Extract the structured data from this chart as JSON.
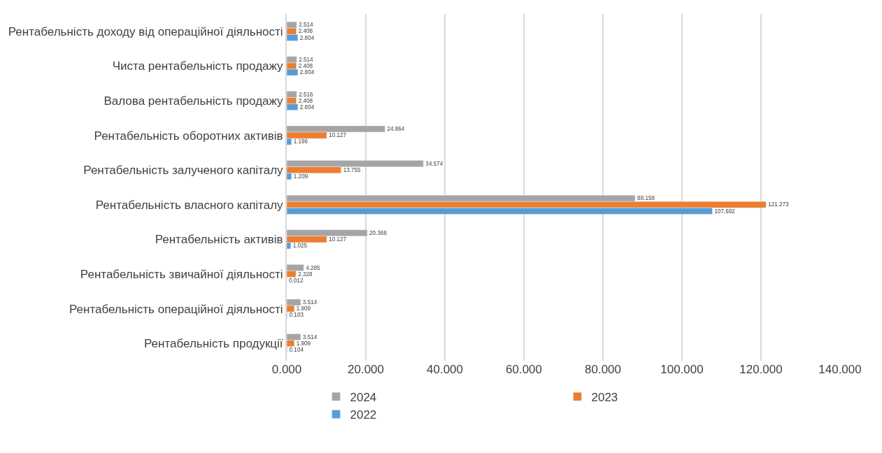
{
  "chart_data": {
    "type": "bar",
    "orientation": "horizontal",
    "categories": [
      "Рентабельність доходу від операційної діяльності",
      "Чиста рентабельність продажу",
      "Валова рентабельність продажу",
      "Рентабельність оборотних активів",
      "Рентабельність залученого капіталу",
      "Рентабельність власного капіталу",
      "Рентабельність активів",
      "Рентабельність звичайної діяльності",
      "Рентабельність операційної діяльності",
      "Рентабельність продукції"
    ],
    "series": [
      {
        "name": "2024",
        "color": "#a5a5a5",
        "values": [
          2.514,
          2.514,
          2.516,
          24.864,
          34.574,
          88.158,
          20.366,
          4.285,
          3.514,
          3.514
        ]
      },
      {
        "name": "2023",
        "color": "#ed7d31",
        "values": [
          2.408,
          2.408,
          2.408,
          10.127,
          13.755,
          121.273,
          10.127,
          2.328,
          1.909,
          1.909
        ]
      },
      {
        "name": "2022",
        "color": "#5b9bd5",
        "values": [
          2.804,
          2.804,
          2.804,
          1.196,
          1.209,
          107.692,
          1.025,
          0.012,
          0.103,
          0.104
        ]
      }
    ],
    "xlim": [
      0,
      140
    ],
    "xticks": [
      {
        "value": 0,
        "label": "0.000"
      },
      {
        "value": 20,
        "label": "20.000"
      },
      {
        "value": 40,
        "label": "40.000"
      },
      {
        "value": 60,
        "label": "60.000"
      },
      {
        "value": 80,
        "label": "80.000"
      },
      {
        "value": 100,
        "label": "100.000"
      },
      {
        "value": 120,
        "label": "120.000"
      },
      {
        "value": 140,
        "label": "140.000"
      }
    ],
    "grid": "x",
    "legend": "bottom",
    "data_labels": true
  }
}
